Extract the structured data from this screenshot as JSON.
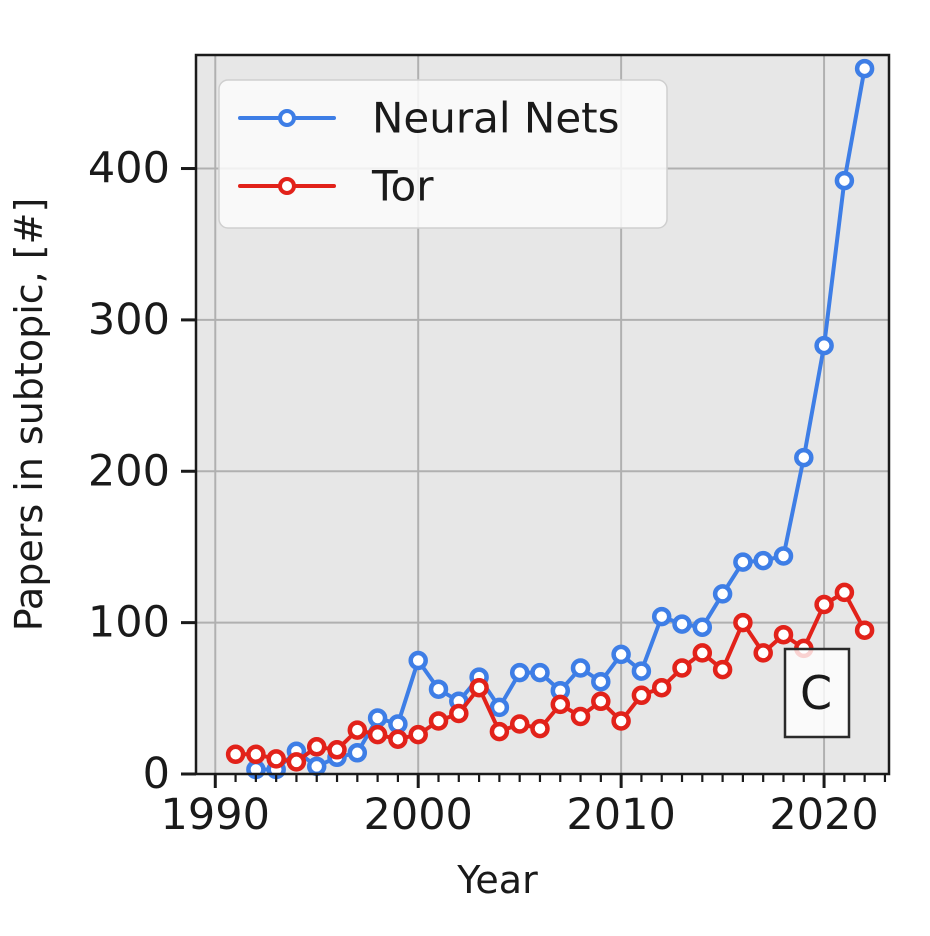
{
  "figure": {
    "xlabel": "Year",
    "ylabel": "Papers in subtopic, [#]",
    "panel_label": "C"
  },
  "legend": {
    "position": "upper left",
    "items": [
      {
        "label": "Neural Nets",
        "color": "#3e7ee6"
      },
      {
        "label": "Tor",
        "color": "#e2221a"
      }
    ]
  },
  "colors": {
    "neural_nets": "#3e7ee6",
    "tor": "#e2221a",
    "plot_background": "#e7e7e7",
    "gridline": "#b0b0b0",
    "spine": "#1a1a1a",
    "tick_text": "#1a1a1a",
    "legend_background": "#fbfbfb",
    "legend_border": "#cfcfcf",
    "panel_box_border": "#2a2a2a",
    "marker_fill": "#ffffff"
  },
  "chart_data": {
    "type": "line",
    "title": "",
    "xlabel": "Year",
    "ylabel": "Papers in subtopic, [#]",
    "x": [
      1991,
      1992,
      1993,
      1994,
      1995,
      1996,
      1997,
      1998,
      1999,
      2000,
      2001,
      2002,
      2003,
      2004,
      2005,
      2006,
      2007,
      2008,
      2009,
      2010,
      2011,
      2012,
      2013,
      2014,
      2015,
      2016,
      2017,
      2018,
      2019,
      2020,
      2021,
      2022
    ],
    "series": [
      {
        "name": "Neural Nets",
        "color": "#3e7ee6",
        "values": [
          null,
          3,
          3,
          15,
          5,
          11,
          14,
          37,
          33,
          75,
          56,
          48,
          64,
          44,
          67,
          67,
          55,
          70,
          61,
          79,
          68,
          104,
          99,
          97,
          119,
          140,
          141,
          144,
          209,
          283,
          392,
          466
        ]
      },
      {
        "name": "Tor",
        "color": "#e2221a",
        "values": [
          13,
          13,
          10,
          8,
          18,
          16,
          29,
          26,
          23,
          26,
          35,
          40,
          57,
          28,
          33,
          30,
          46,
          38,
          48,
          35,
          52,
          57,
          70,
          80,
          69,
          100,
          80,
          92,
          83,
          112,
          120,
          95
        ]
      }
    ],
    "xlim": [
      1989.05,
      2023.2
    ],
    "ylim": [
      0,
      475
    ],
    "xticks": [
      1990,
      2000,
      2010,
      2020
    ],
    "yticks": [
      0,
      100,
      200,
      300,
      400
    ],
    "x_minor_tick_step": 1,
    "grid": true,
    "legend_position": "upper left",
    "marker": "o",
    "annotations": [
      {
        "text": "C",
        "location": "lower right"
      }
    ]
  }
}
